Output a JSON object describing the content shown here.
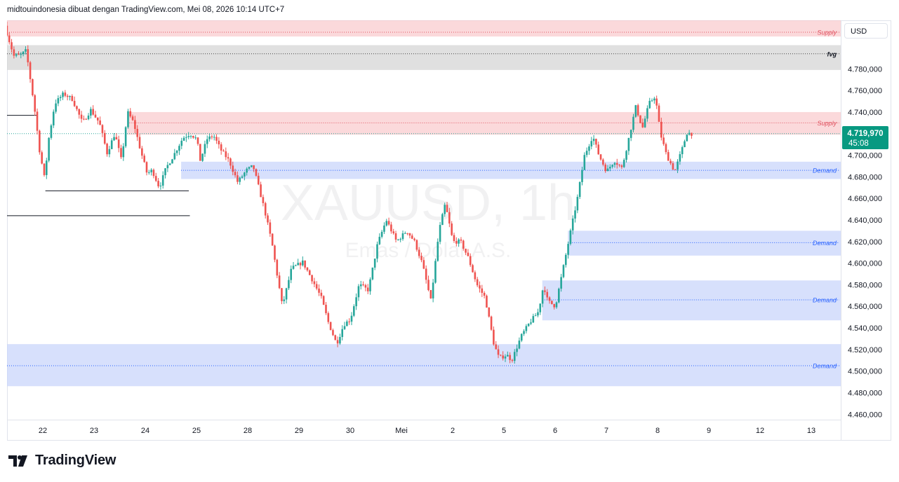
{
  "header": {
    "title": "midtouindonesia dibuat dengan TradingView.com, Mei 08, 2026 10:14 UTC+7"
  },
  "toolbar": {
    "currency": "USD"
  },
  "footer": {
    "brand": "TradingView"
  },
  "colors": {
    "up": "#26a69a",
    "down": "#ef5350",
    "supply_zone": "#f9c4c8",
    "demand_zone": "#c9d5fb",
    "fvg_zone": "#d6d6d6",
    "last_price_bg": "#089981"
  },
  "chart_data": {
    "type": "candlestick",
    "symbol_watermark": "XAUUSD, 1h",
    "sub_watermark": "Emas / Dolar A.S.",
    "last_price": "4.719,970",
    "countdown": "45:08",
    "y_axis": {
      "range": [
        4455000,
        4825000
      ],
      "ticks": [
        "4.780,000",
        "4.760,000",
        "4.740,000",
        "4.720,000",
        "4.700,000",
        "4.680,000",
        "4.660,000",
        "4.640,000",
        "4.620,000",
        "4.600,000",
        "4.580,000",
        "4.560,000",
        "4.540,000",
        "4.520,000",
        "4.500,000",
        "4.480,000",
        "4.460,000"
      ],
      "tick_values": [
        4780000,
        4760000,
        4740000,
        4720000,
        4700000,
        4680000,
        4660000,
        4640000,
        4620000,
        4600000,
        4580000,
        4560000,
        4540000,
        4520000,
        4500000,
        4480000,
        4460000
      ]
    },
    "x_axis": {
      "ticks": [
        "22",
        "23",
        "24",
        "25",
        "28",
        "29",
        "30",
        "Mei",
        "2",
        "5",
        "6",
        "7",
        "8",
        "9",
        "12",
        "13"
      ],
      "tick_index": [
        0,
        1,
        2,
        3,
        4,
        5,
        6,
        7,
        8,
        9,
        10,
        11,
        12,
        13,
        14,
        15
      ]
    },
    "zones": [
      {
        "label": "Supply",
        "kind": "supply",
        "top": 4825000,
        "bottom": 4810000,
        "mid": 4814000,
        "from_day": -0.7
      },
      {
        "label": "fvg",
        "kind": "fvg",
        "top": 4802000,
        "bottom": 4779000,
        "mid": 4794000,
        "from_day": -0.7
      },
      {
        "label": "Supply",
        "kind": "supply",
        "top": 4740000,
        "bottom": 4719000,
        "mid": 4730000,
        "from_day": 1.65
      },
      {
        "label": "Demand",
        "kind": "demand",
        "top": 4694000,
        "bottom": 4678000,
        "mid": 4686000,
        "from_day": 2.7
      },
      {
        "label": "Demand",
        "kind": "demand",
        "top": 4630000,
        "bottom": 4607000,
        "mid": 4619000,
        "from_day": 10.25
      },
      {
        "label": "Demand",
        "kind": "demand",
        "top": 4584000,
        "bottom": 4547000,
        "mid": 4566000,
        "from_day": 9.75
      },
      {
        "label": "Demand",
        "kind": "demand",
        "top": 4525000,
        "bottom": 4486000,
        "mid": 4505000,
        "from_day": -0.7
      }
    ],
    "hlines": [
      {
        "price": 4737000,
        "from_day": -0.7,
        "to_day": -0.12
      },
      {
        "price": 4667000,
        "from_day": 0.05,
        "to_day": 2.85
      },
      {
        "price": 4644000,
        "from_day": -0.7,
        "to_day": 2.87
      }
    ],
    "series_anchors": [
      [
        -0.7,
        4820
      ],
      [
        -0.52,
        4792
      ],
      [
        -0.38,
        4793
      ],
      [
        -0.28,
        4797
      ],
      [
        -0.12,
        4745
      ],
      [
        -0.02,
        4705
      ],
      [
        0.08,
        4678
      ],
      [
        0.16,
        4715
      ],
      [
        0.28,
        4748
      ],
      [
        0.45,
        4757
      ],
      [
        0.62,
        4752
      ],
      [
        0.82,
        4730
      ],
      [
        0.98,
        4742
      ],
      [
        1.15,
        4730
      ],
      [
        1.3,
        4702
      ],
      [
        1.45,
        4720
      ],
      [
        1.58,
        4695
      ],
      [
        1.7,
        4740
      ],
      [
        1.82,
        4730
      ],
      [
        1.95,
        4705
      ],
      [
        2.08,
        4683
      ],
      [
        2.18,
        4686
      ],
      [
        2.32,
        4670
      ],
      [
        2.45,
        4688
      ],
      [
        2.6,
        4700
      ],
      [
        2.78,
        4716
      ],
      [
        2.92,
        4720
      ],
      [
        3.05,
        4715
      ],
      [
        3.12,
        4695
      ],
      [
        3.25,
        4715
      ],
      [
        3.38,
        4718
      ],
      [
        3.52,
        4705
      ],
      [
        3.68,
        4695
      ],
      [
        3.85,
        4675
      ],
      [
        4.02,
        4686
      ],
      [
        4.15,
        4690
      ],
      [
        4.25,
        4672
      ],
      [
        4.38,
        4648
      ],
      [
        4.52,
        4618
      ],
      [
        4.72,
        4560
      ],
      [
        4.9,
        4595
      ],
      [
        5.12,
        4601
      ],
      [
        5.3,
        4585
      ],
      [
        5.48,
        4568
      ],
      [
        5.62,
        4545
      ],
      [
        5.78,
        4525
      ],
      [
        5.92,
        4543
      ],
      [
        6.05,
        4548
      ],
      [
        6.22,
        4580
      ],
      [
        6.4,
        4575
      ],
      [
        6.58,
        4618
      ],
      [
        6.75,
        4640
      ],
      [
        6.95,
        4620
      ],
      [
        7.15,
        4630
      ],
      [
        7.3,
        4620
      ],
      [
        7.45,
        4600
      ],
      [
        7.62,
        4565
      ],
      [
        7.78,
        4630
      ],
      [
        7.9,
        4655
      ],
      [
        8.05,
        4620
      ],
      [
        8.2,
        4620
      ],
      [
        8.35,
        4605
      ],
      [
        8.52,
        4580
      ],
      [
        8.68,
        4568
      ],
      [
        8.85,
        4525
      ],
      [
        8.95,
        4512
      ],
      [
        9.1,
        4515
      ],
      [
        9.2,
        4510
      ],
      [
        9.38,
        4532
      ],
      [
        9.55,
        4545
      ],
      [
        9.72,
        4555
      ],
      [
        9.82,
        4580
      ],
      [
        9.9,
        4565
      ],
      [
        10.05,
        4560
      ],
      [
        10.18,
        4590
      ],
      [
        10.35,
        4630
      ],
      [
        10.48,
        4660
      ],
      [
        10.62,
        4700
      ],
      [
        10.78,
        4718
      ],
      [
        10.9,
        4700
      ],
      [
        11.05,
        4685
      ],
      [
        11.2,
        4695
      ],
      [
        11.35,
        4688
      ],
      [
        11.48,
        4715
      ],
      [
        11.62,
        4745
      ],
      [
        11.75,
        4725
      ],
      [
        11.88,
        4748
      ],
      [
        12.0,
        4755
      ],
      [
        12.1,
        4720
      ],
      [
        12.22,
        4700
      ],
      [
        12.38,
        4685
      ],
      [
        12.52,
        4705
      ],
      [
        12.62,
        4721
      ],
      [
        12.7,
        4719.97
      ]
    ]
  }
}
